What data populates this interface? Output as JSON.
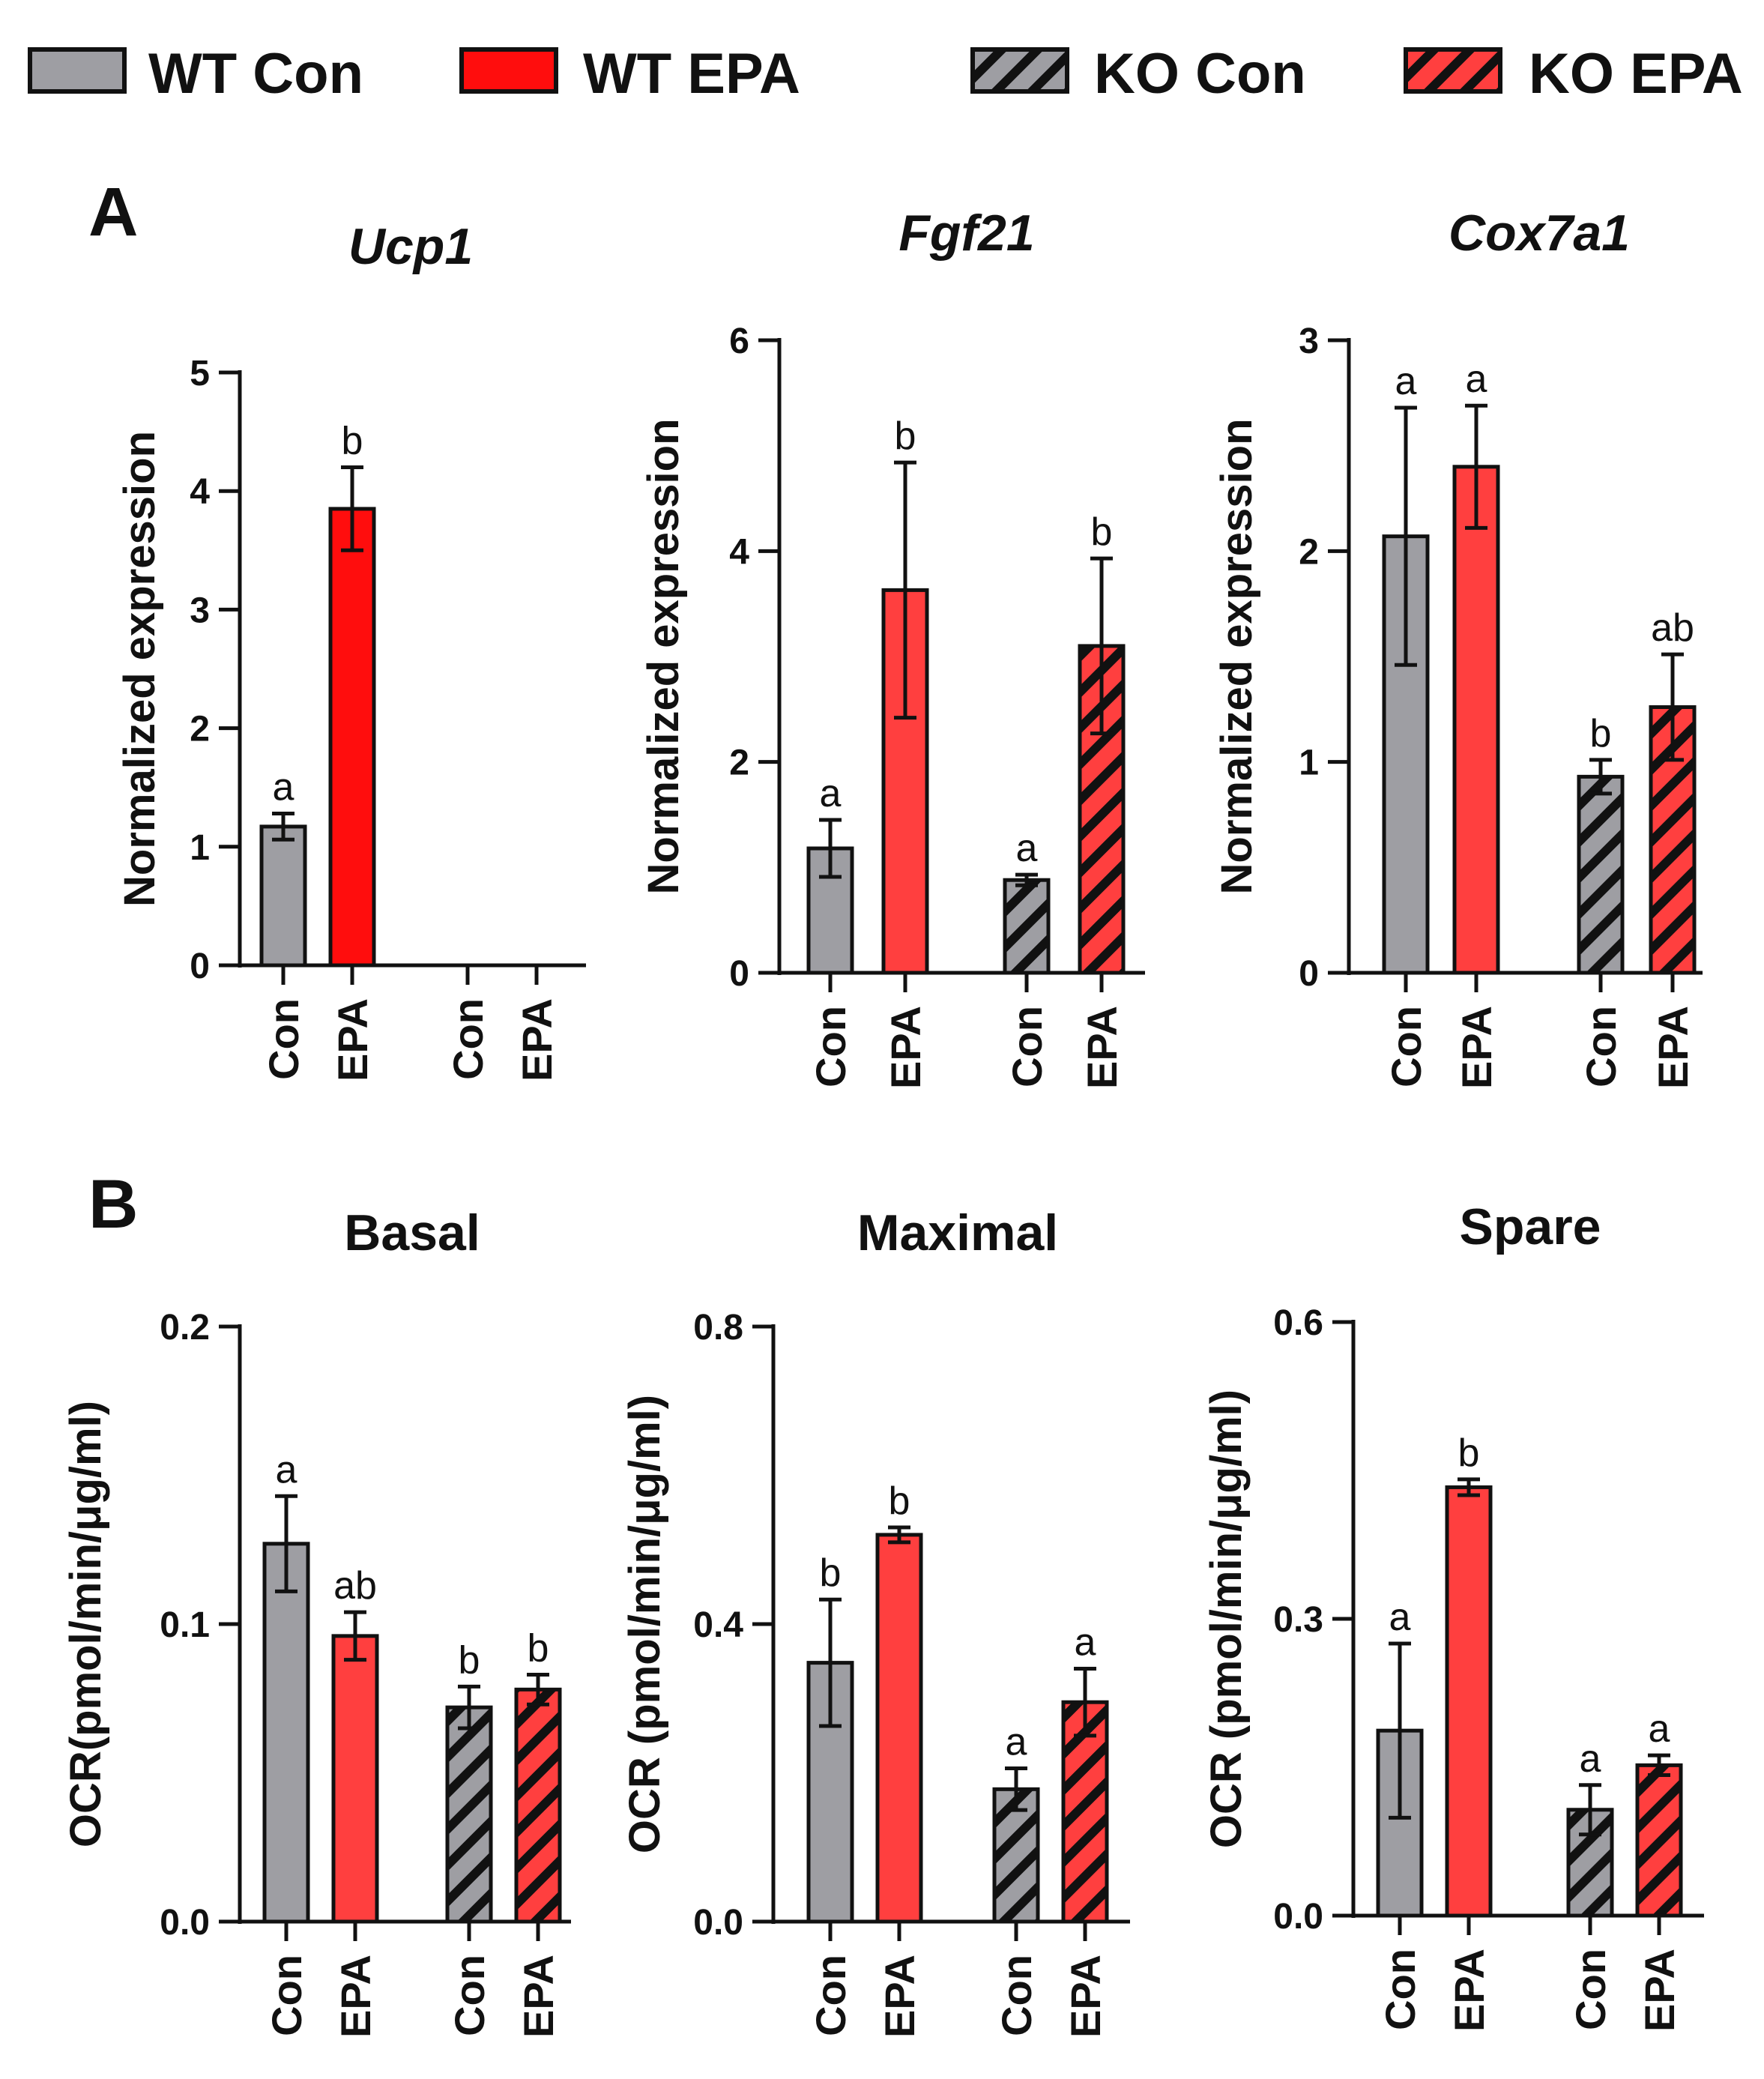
{
  "colors": {
    "wt_con": "#9e9ea3",
    "wt_epa": "#ff3f3f",
    "wt_epa_ucp1": "#ff0d0d",
    "hatch": "#111111",
    "axis": "#111111"
  },
  "legend": [
    {
      "label": "WT Con",
      "fill": "wt_con",
      "hatched": false
    },
    {
      "label": "WT EPA",
      "fill": "wt_epa_ucp1",
      "hatched": false
    },
    {
      "label": "KO Con",
      "fill": "wt_con",
      "hatched": true
    },
    {
      "label": "KO EPA",
      "fill": "wt_epa",
      "hatched": true
    }
  ],
  "panels": [
    {
      "letter": "A"
    },
    {
      "letter": "B"
    }
  ],
  "chart_data": [
    {
      "type": "bar",
      "title": "Ucp1",
      "title_italic": true,
      "ylabel": "Normalized expression",
      "ylim": [
        0,
        5
      ],
      "yticks": [
        "0",
        "1",
        "2",
        "3",
        "4",
        "5"
      ],
      "categories": [
        "Con",
        "EPA",
        "Con",
        "EPA"
      ],
      "series": [
        {
          "name": "WT Con",
          "value": 1.17,
          "error": 0.11,
          "sig": "a"
        },
        {
          "name": "WT EPA",
          "value": 3.85,
          "error": 0.35,
          "sig": "b"
        },
        {
          "name": "KO Con",
          "value": null,
          "error": null,
          "sig": ""
        },
        {
          "name": "KO EPA",
          "value": null,
          "error": null,
          "sig": ""
        }
      ]
    },
    {
      "type": "bar",
      "title": "Fgf21",
      "title_italic": true,
      "ylabel": "Normalized expression",
      "ylim": [
        0,
        6
      ],
      "yticks": [
        "0",
        "2",
        "4",
        "6"
      ],
      "categories": [
        "Con",
        "EPA",
        "Con",
        "EPA"
      ],
      "series": [
        {
          "name": "WT Con",
          "value": 1.18,
          "error": 0.27,
          "sig": "a"
        },
        {
          "name": "WT EPA",
          "value": 3.63,
          "error": 1.21,
          "sig": "b"
        },
        {
          "name": "KO Con",
          "value": 0.88,
          "error": 0.05,
          "sig": "a"
        },
        {
          "name": "KO EPA",
          "value": 3.1,
          "error": 0.83,
          "sig": "b"
        }
      ]
    },
    {
      "type": "bar",
      "title": "Cox7a1",
      "title_italic": true,
      "ylabel": "Normalized expression",
      "ylim": [
        0,
        3
      ],
      "yticks": [
        "0",
        "1",
        "2",
        "3"
      ],
      "categories": [
        "Con",
        "EPA",
        "Con",
        "EPA"
      ],
      "series": [
        {
          "name": "WT Con",
          "value": 2.07,
          "error": 0.61,
          "sig": "a"
        },
        {
          "name": "WT EPA",
          "value": 2.4,
          "error": 0.29,
          "sig": "a"
        },
        {
          "name": "KO Con",
          "value": 0.93,
          "error": 0.08,
          "sig": "b"
        },
        {
          "name": "KO EPA",
          "value": 1.26,
          "error": 0.25,
          "sig": "ab"
        }
      ]
    },
    {
      "type": "bar",
      "title": "Basal",
      "title_italic": false,
      "ylabel": "OCR(pmol/min/μg/ml)",
      "ylim": [
        0,
        0.2
      ],
      "yticks": [
        "0.0",
        "0.1",
        "0.2"
      ],
      "categories": [
        "Con",
        "EPA",
        "Con",
        "EPA"
      ],
      "series": [
        {
          "name": "WT Con",
          "value": 0.127,
          "error": 0.016,
          "sig": "a"
        },
        {
          "name": "WT EPA",
          "value": 0.096,
          "error": 0.008,
          "sig": "ab"
        },
        {
          "name": "KO Con",
          "value": 0.072,
          "error": 0.007,
          "sig": "b"
        },
        {
          "name": "KO EPA",
          "value": 0.078,
          "error": 0.005,
          "sig": "b"
        }
      ]
    },
    {
      "type": "bar",
      "title": "Maximal",
      "title_italic": false,
      "ylabel": "OCR (pmol/min/μg/ml)",
      "ylim": [
        0,
        0.8
      ],
      "yticks": [
        "0.0",
        "0.4",
        "0.8"
      ],
      "categories": [
        "Con",
        "EPA",
        "Con",
        "EPA"
      ],
      "series": [
        {
          "name": "WT Con",
          "value": 0.348,
          "error": 0.085,
          "sig": "b"
        },
        {
          "name": "WT EPA",
          "value": 0.52,
          "error": 0.01,
          "sig": "b"
        },
        {
          "name": "KO Con",
          "value": 0.178,
          "error": 0.028,
          "sig": "a"
        },
        {
          "name": "KO EPA",
          "value": 0.295,
          "error": 0.045,
          "sig": "a"
        }
      ]
    },
    {
      "type": "bar",
      "title": "Spare",
      "title_italic": false,
      "ylabel": "OCR (pmol/min/μg/ml)",
      "ylim": [
        0,
        0.6
      ],
      "yticks": [
        "0.0",
        "0.3",
        "0.6"
      ],
      "categories": [
        "Con",
        "EPA",
        "Con",
        "EPA"
      ],
      "series": [
        {
          "name": "WT Con",
          "value": 0.187,
          "error": 0.088,
          "sig": "a"
        },
        {
          "name": "WT EPA",
          "value": 0.433,
          "error": 0.008,
          "sig": "b"
        },
        {
          "name": "KO Con",
          "value": 0.107,
          "error": 0.025,
          "sig": "a"
        },
        {
          "name": "KO EPA",
          "value": 0.152,
          "error": 0.01,
          "sig": "a"
        }
      ]
    }
  ]
}
